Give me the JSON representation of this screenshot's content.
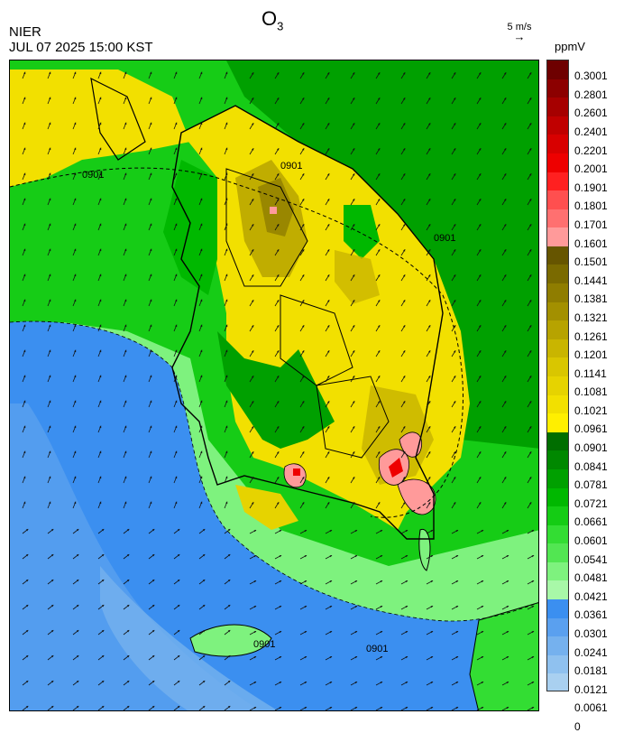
{
  "header": {
    "title_main": "O",
    "title_sub": "3",
    "org": "NIER",
    "timestamp": "JUL 07 2025 15:00 KST"
  },
  "wind_reference": {
    "label": "5 m/s",
    "arrow": "→"
  },
  "legend": {
    "unit": "ppmV",
    "ticks": [
      "0.3001",
      "0.2801",
      "0.2601",
      "0.2401",
      "0.2201",
      "0.2001",
      "0.1901",
      "0.1801",
      "0.1701",
      "0.1601",
      "0.1501",
      "0.1441",
      "0.1381",
      "0.1321",
      "0.1261",
      "0.1201",
      "0.1141",
      "0.1081",
      "0.1021",
      "0.0961",
      "0.0901",
      "0.0841",
      "0.0781",
      "0.0721",
      "0.0661",
      "0.0601",
      "0.0541",
      "0.0481",
      "0.0421",
      "0.0361",
      "0.0301",
      "0.0241",
      "0.0181",
      "0.0121",
      "0.0061",
      "0"
    ],
    "colors": [
      "#6e0000",
      "#8c0000",
      "#a60000",
      "#c00000",
      "#d80000",
      "#ee0000",
      "#ff2020",
      "#ff4f4f",
      "#ff7070",
      "#ff9a9a",
      "#665500",
      "#7a6a00",
      "#8f7d00",
      "#a39000",
      "#b7a300",
      "#c9b500",
      "#d9c600",
      "#e6d300",
      "#f2e000",
      "#ffef00",
      "#006e00",
      "#008800",
      "#00a000",
      "#00b800",
      "#14cc14",
      "#33dd33",
      "#52e652",
      "#7ef27e",
      "#a8f8a8",
      "#3b8ff0",
      "#5aa0ef",
      "#75b1ee",
      "#8fc1ef",
      "#a9d0f0"
    ],
    "contour_label": "0901"
  }
}
